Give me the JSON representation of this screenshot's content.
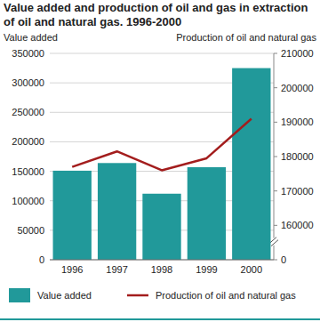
{
  "chart_data": {
    "type": "bar",
    "title": "Value added and production of oil and gas in extraction of oil and natural gas. 1996-2000",
    "y_label": "Value added",
    "y2_label": "Production of oil and natural gas",
    "categories": [
      "1996",
      "1997",
      "1998",
      "1999",
      "2000"
    ],
    "series": [
      {
        "name": "Value added",
        "type": "bar",
        "color": "#21999a",
        "values": [
          151000,
          164000,
          112000,
          157000,
          325000
        ]
      },
      {
        "name": "Production of oil and natural gas",
        "type": "line",
        "axis": "y2",
        "color": "#a31d1d",
        "values": [
          177000,
          181500,
          176000,
          179500,
          191000
        ]
      }
    ],
    "ylim": [
      0,
      350000
    ],
    "yticks": [
      0,
      50000,
      100000,
      150000,
      200000,
      250000,
      300000,
      350000
    ],
    "y2lim": [
      0,
      210000
    ],
    "y2ticks": [
      0,
      160000,
      170000,
      180000,
      190000,
      200000,
      210000
    ],
    "grid": true,
    "legend": "bottom"
  }
}
